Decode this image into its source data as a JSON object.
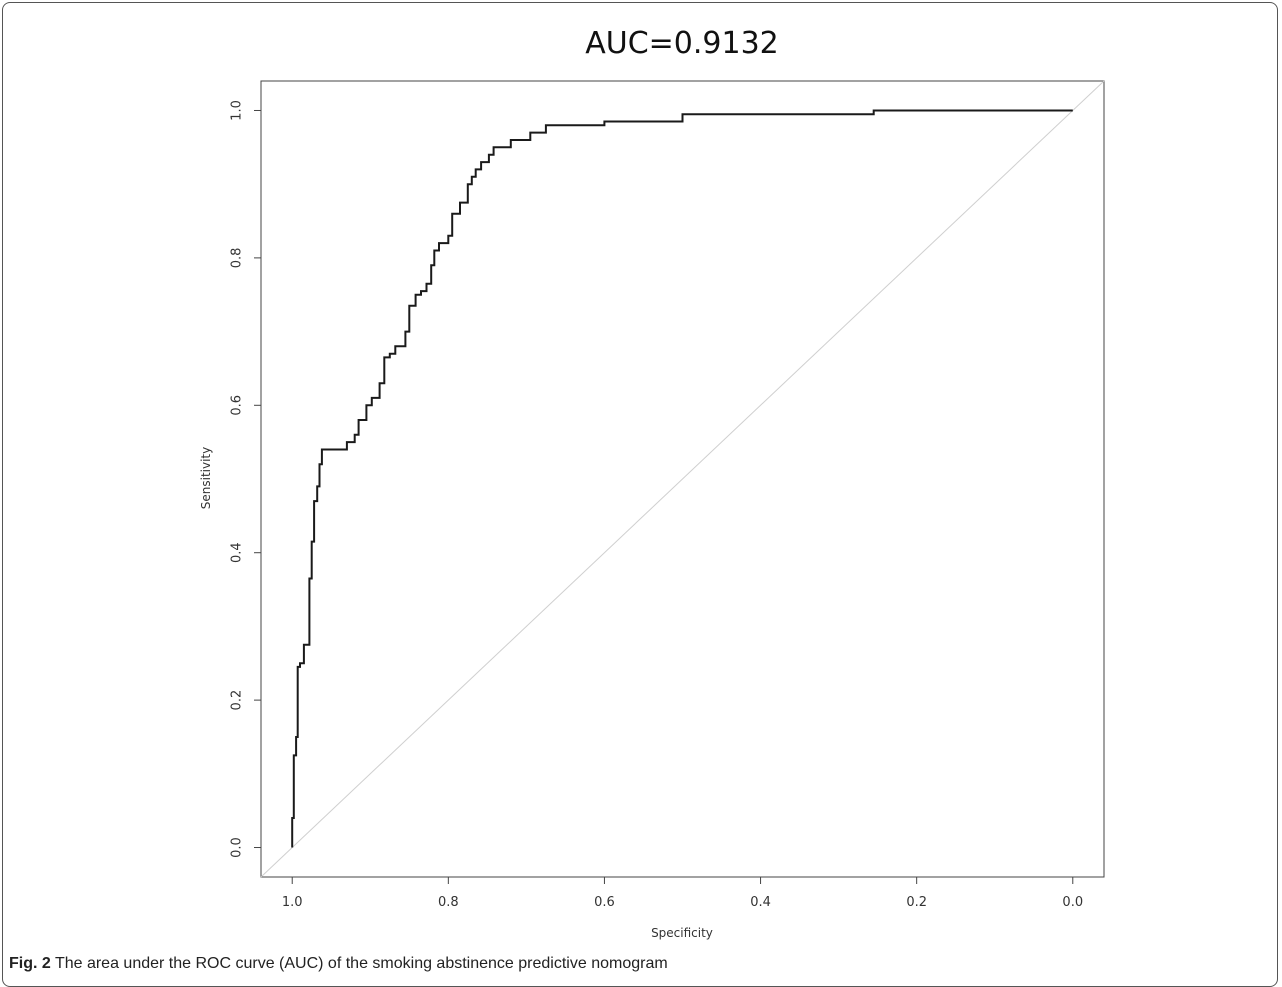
{
  "chart_data": {
    "type": "line",
    "title": "AUC=0.9132",
    "xlabel": "Specificity",
    "ylabel": "Sensitivity",
    "xlim": [
      1.04,
      -0.04
    ],
    "ylim": [
      -0.04,
      1.04
    ],
    "x_reversed": true,
    "xticks": [
      "1.0",
      "0.8",
      "0.6",
      "0.4",
      "0.2",
      "0.0"
    ],
    "yticks": [
      "0.0",
      "0.2",
      "0.4",
      "0.6",
      "0.8",
      "1.0"
    ],
    "grid": false,
    "series": [
      {
        "values": [
          [
            1.0,
            0.0
          ],
          [
            1.0,
            0.04
          ],
          [
            0.998,
            0.04
          ],
          [
            0.998,
            0.125
          ],
          [
            0.995,
            0.125
          ],
          [
            0.995,
            0.15
          ],
          [
            0.993,
            0.15
          ],
          [
            0.993,
            0.245
          ],
          [
            0.99,
            0.245
          ],
          [
            0.99,
            0.25
          ],
          [
            0.985,
            0.25
          ],
          [
            0.985,
            0.275
          ],
          [
            0.978,
            0.275
          ],
          [
            0.978,
            0.365
          ],
          [
            0.975,
            0.365
          ],
          [
            0.975,
            0.415
          ],
          [
            0.972,
            0.415
          ],
          [
            0.972,
            0.47
          ],
          [
            0.968,
            0.47
          ],
          [
            0.968,
            0.49
          ],
          [
            0.965,
            0.49
          ],
          [
            0.965,
            0.52
          ],
          [
            0.962,
            0.52
          ],
          [
            0.962,
            0.54
          ],
          [
            0.93,
            0.54
          ],
          [
            0.93,
            0.55
          ],
          [
            0.92,
            0.55
          ],
          [
            0.92,
            0.56
          ],
          [
            0.915,
            0.56
          ],
          [
            0.915,
            0.58
          ],
          [
            0.905,
            0.58
          ],
          [
            0.905,
            0.6
          ],
          [
            0.898,
            0.6
          ],
          [
            0.898,
            0.61
          ],
          [
            0.888,
            0.61
          ],
          [
            0.888,
            0.63
          ],
          [
            0.882,
            0.63
          ],
          [
            0.882,
            0.665
          ],
          [
            0.875,
            0.665
          ],
          [
            0.875,
            0.67
          ],
          [
            0.868,
            0.67
          ],
          [
            0.868,
            0.68
          ],
          [
            0.855,
            0.68
          ],
          [
            0.855,
            0.7
          ],
          [
            0.85,
            0.7
          ],
          [
            0.85,
            0.735
          ],
          [
            0.842,
            0.735
          ],
          [
            0.842,
            0.75
          ],
          [
            0.835,
            0.75
          ],
          [
            0.835,
            0.755
          ],
          [
            0.828,
            0.755
          ],
          [
            0.828,
            0.765
          ],
          [
            0.822,
            0.765
          ],
          [
            0.822,
            0.79
          ],
          [
            0.818,
            0.79
          ],
          [
            0.818,
            0.81
          ],
          [
            0.812,
            0.81
          ],
          [
            0.812,
            0.82
          ],
          [
            0.8,
            0.82
          ],
          [
            0.8,
            0.83
          ],
          [
            0.795,
            0.83
          ],
          [
            0.795,
            0.86
          ],
          [
            0.785,
            0.86
          ],
          [
            0.785,
            0.875
          ],
          [
            0.775,
            0.875
          ],
          [
            0.775,
            0.9
          ],
          [
            0.77,
            0.9
          ],
          [
            0.77,
            0.91
          ],
          [
            0.765,
            0.91
          ],
          [
            0.765,
            0.92
          ],
          [
            0.758,
            0.92
          ],
          [
            0.758,
            0.93
          ],
          [
            0.748,
            0.93
          ],
          [
            0.748,
            0.94
          ],
          [
            0.742,
            0.94
          ],
          [
            0.742,
            0.95
          ],
          [
            0.72,
            0.95
          ],
          [
            0.72,
            0.96
          ],
          [
            0.695,
            0.96
          ],
          [
            0.695,
            0.97
          ],
          [
            0.675,
            0.97
          ],
          [
            0.675,
            0.98
          ],
          [
            0.6,
            0.98
          ],
          [
            0.6,
            0.985
          ],
          [
            0.5,
            0.985
          ],
          [
            0.5,
            0.995
          ],
          [
            0.255,
            0.995
          ],
          [
            0.255,
            1.0
          ],
          [
            0.0,
            1.0
          ]
        ]
      },
      {
        "values": [
          [
            1.04,
            -0.04
          ],
          [
            -0.04,
            1.04
          ]
        ]
      }
    ]
  },
  "caption": {
    "label": "Fig. 2",
    "text": " The area under the ROC curve (AUC) of the smoking abstinence predictive nomogram"
  }
}
